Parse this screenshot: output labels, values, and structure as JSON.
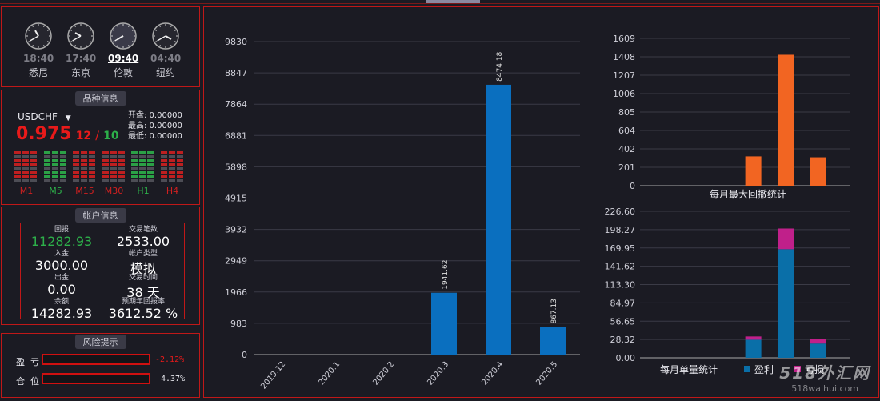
{
  "clocks": [
    {
      "time": "18:40",
      "city": "悉尼",
      "hour": -30,
      "min": 240
    },
    {
      "time": "17:40",
      "city": "东京",
      "hour": -60,
      "min": 240
    },
    {
      "time": "09:40",
      "city": "伦敦",
      "hour": -120,
      "min": 240
    },
    {
      "time": "04:40",
      "city": "纽约",
      "hour": -240,
      "min": 240
    }
  ],
  "symbol_info": {
    "title": "品种信息",
    "symbol": "USDCHF",
    "price_big": "0.975",
    "price_small": "12",
    "slash": "/",
    "spread": "10",
    "open_label": "开盘",
    "open": ": 0.00000",
    "high_label": "最高",
    "high": ": 0.00000",
    "low_label": "最低",
    "low": ": 0.00000",
    "timeframes": [
      "M1",
      "M5",
      "M15",
      "M30",
      "H1",
      "H4"
    ],
    "timeframe_colors": [
      "#d02020",
      "#2db04a",
      "#d02020",
      "#d02020",
      "#2db04a",
      "#d02020"
    ]
  },
  "account": {
    "title": "帐户信息",
    "items": [
      {
        "label": "回报",
        "value": "11282.93",
        "color": "#2db04a"
      },
      {
        "label": "交易笔数",
        "value": "2533.00",
        "color": "#ffffff"
      },
      {
        "label": "入金",
        "value": "3000.00",
        "color": "#ffffff"
      },
      {
        "label": "帐户类型",
        "value": "模拟",
        "color": "#ffffff"
      },
      {
        "label": "出金",
        "value": "0.00",
        "color": "#ffffff"
      },
      {
        "label": "交易时间",
        "value": "38 天",
        "color": "#ffffff"
      },
      {
        "label": "余额",
        "value": "14282.93",
        "color": "#ffffff"
      },
      {
        "label": "预期年回报率",
        "value": "3612.52 %",
        "color": "#ffffff"
      }
    ]
  },
  "risk": {
    "title": "风险提示",
    "pl_label": "盈  亏",
    "pl_value": "-2.12%",
    "pos_label": "仓  位",
    "pos_value": "4.37%"
  },
  "chart_data": [
    {
      "type": "bar",
      "categories": [
        "2019.12",
        "2020.1",
        "2020.2",
        "2020.3",
        "2020.4",
        "2020.5"
      ],
      "values": [
        0,
        0,
        0,
        1941.62,
        8474.18,
        867.13
      ],
      "value_labels": [
        "",
        "",
        "",
        "1941.62",
        "8474.18",
        "867.13"
      ],
      "yticks": [
        "0",
        "983",
        "1966",
        "2949",
        "3932",
        "4915",
        "5898",
        "6881",
        "7864",
        "8847",
        "9830"
      ],
      "ylim": [
        0,
        9830
      ],
      "color": "#0a6fbf"
    },
    {
      "type": "bar",
      "title": "每月最大回撤统计",
      "values": [
        0,
        0,
        0,
        320,
        1430,
        310
      ],
      "yticks": [
        "0",
        "201",
        "402",
        "604",
        "805",
        "1006",
        "1207",
        "1408",
        "1609"
      ],
      "ylim": [
        0,
        1609
      ],
      "color": "#f26522"
    },
    {
      "type": "bar",
      "title": "每月单量统计",
      "series": [
        {
          "name": "盈利",
          "values": [
            0,
            0,
            0,
            28,
            168,
            22
          ],
          "color": "#0a6fa8"
        },
        {
          "name": "亏损",
          "values": [
            0,
            0,
            0,
            5,
            32,
            7
          ],
          "color": "#c0208a"
        }
      ],
      "yticks": [
        "0.00",
        "28.32",
        "56.65",
        "84.97",
        "113.30",
        "141.62",
        "169.95",
        "198.27",
        "226.60"
      ],
      "ylim": [
        0,
        226.6
      ]
    }
  ],
  "watermark": {
    "line1": "518外汇网",
    "line2": "518waihui.com"
  }
}
